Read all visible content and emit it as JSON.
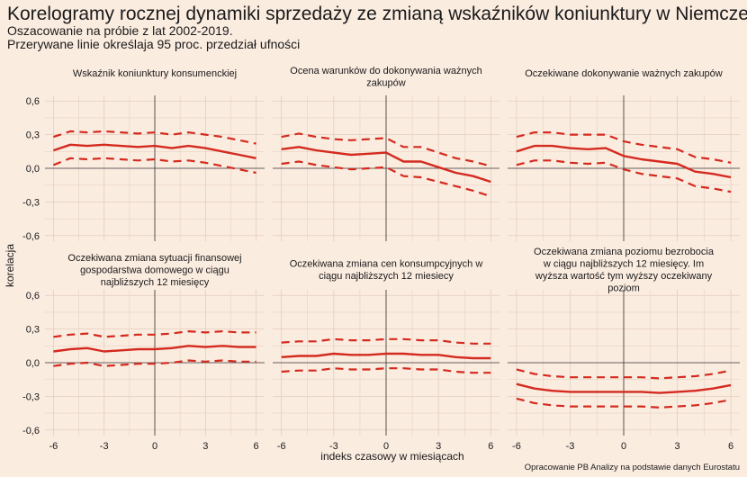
{
  "title": "Korelogramy rocznej dynamiki sprzedaży ze zmianą wskaźników koniunktury w Niemczech",
  "subtitle_line1": "Oszacowanie na próbie z lat 2002-2019.",
  "subtitle_line2": "Przerywane linie określaja 95 proc. przedział ufności",
  "caption": "Opracowanie PB Analizy na podstawie danych Eurostatu",
  "colors": {
    "background": "#fbece0",
    "line": "#d42a1f",
    "grid": "#e3cdbd",
    "zero_line": "#333333"
  },
  "chart_data": {
    "type": "line",
    "xlabel": "indeks czasowy w miesiącach",
    "ylabel": "korelacja",
    "x": [
      -6,
      -5,
      -4,
      -3,
      -2,
      -1,
      0,
      1,
      2,
      3,
      4,
      5,
      6
    ],
    "xlim": [
      -6.5,
      6.5
    ],
    "ylim": [
      -0.65,
      0.65
    ],
    "x_ticks": [
      -6,
      -3,
      0,
      3,
      6
    ],
    "x_tick_labels": [
      "-6",
      "-3",
      "0",
      "3",
      "6"
    ],
    "y_ticks": [
      -0.6,
      -0.3,
      0,
      0.3,
      0.6
    ],
    "y_tick_labels": [
      "-0,6",
      "-0,3",
      "0,0",
      "0,3",
      "0,6"
    ],
    "grid": true,
    "panels": [
      {
        "title": [
          "Wskaźnik koniunktury konsumenckiej"
        ],
        "estimate": [
          0.16,
          0.21,
          0.2,
          0.21,
          0.2,
          0.19,
          0.2,
          0.18,
          0.2,
          0.18,
          0.15,
          0.12,
          0.09
        ],
        "upper": [
          0.28,
          0.33,
          0.32,
          0.33,
          0.32,
          0.31,
          0.32,
          0.3,
          0.32,
          0.3,
          0.28,
          0.25,
          0.22
        ],
        "lower": [
          0.03,
          0.09,
          0.08,
          0.09,
          0.08,
          0.07,
          0.08,
          0.06,
          0.07,
          0.05,
          0.02,
          -0.01,
          -0.04
        ]
      },
      {
        "title": [
          "Ocena warunków do dokonywania ważnych",
          "zakupów"
        ],
        "estimate": [
          0.17,
          0.19,
          0.16,
          0.14,
          0.12,
          0.13,
          0.14,
          0.06,
          0.06,
          0.01,
          -0.04,
          -0.07,
          -0.12
        ],
        "upper": [
          0.28,
          0.31,
          0.28,
          0.26,
          0.25,
          0.26,
          0.27,
          0.19,
          0.19,
          0.14,
          0.09,
          0.06,
          0.02
        ],
        "lower": [
          0.04,
          0.06,
          0.03,
          0.01,
          -0.01,
          0.0,
          0.01,
          -0.07,
          -0.08,
          -0.12,
          -0.16,
          -0.2,
          -0.25
        ]
      },
      {
        "title": [
          "Oczekiwane dokonywanie ważnych zakupów"
        ],
        "estimate": [
          0.15,
          0.2,
          0.2,
          0.18,
          0.17,
          0.18,
          0.11,
          0.08,
          0.06,
          0.04,
          -0.03,
          -0.05,
          -0.08
        ],
        "upper": [
          0.28,
          0.32,
          0.32,
          0.3,
          0.3,
          0.3,
          0.24,
          0.21,
          0.19,
          0.17,
          0.1,
          0.08,
          0.05
        ],
        "lower": [
          0.03,
          0.07,
          0.07,
          0.05,
          0.04,
          0.05,
          -0.01,
          -0.05,
          -0.07,
          -0.09,
          -0.16,
          -0.18,
          -0.21
        ]
      },
      {
        "title": [
          "Oczekiwana zmiana sytuacji finansowej",
          "gospodarstwa domowego w ciągu",
          "najbliższych 12 miesięcy"
        ],
        "estimate": [
          0.1,
          0.12,
          0.13,
          0.1,
          0.11,
          0.12,
          0.12,
          0.13,
          0.15,
          0.14,
          0.15,
          0.14,
          0.14
        ],
        "upper": [
          0.23,
          0.25,
          0.26,
          0.23,
          0.24,
          0.25,
          0.25,
          0.26,
          0.28,
          0.27,
          0.28,
          0.27,
          0.27
        ],
        "lower": [
          -0.03,
          -0.01,
          0.0,
          -0.03,
          -0.02,
          -0.01,
          -0.01,
          0.0,
          0.02,
          0.01,
          0.02,
          0.01,
          0.01
        ]
      },
      {
        "title": [
          "Oczekiwana zmiana cen konsumpcyjnych w",
          "ciągu najbliższych 12 miesiecy"
        ],
        "estimate": [
          0.05,
          0.06,
          0.06,
          0.08,
          0.07,
          0.07,
          0.08,
          0.08,
          0.07,
          0.07,
          0.05,
          0.04,
          0.04
        ],
        "upper": [
          0.18,
          0.19,
          0.19,
          0.21,
          0.2,
          0.2,
          0.21,
          0.21,
          0.2,
          0.2,
          0.18,
          0.17,
          0.17
        ],
        "lower": [
          -0.08,
          -0.07,
          -0.07,
          -0.05,
          -0.06,
          -0.06,
          -0.05,
          -0.05,
          -0.06,
          -0.06,
          -0.08,
          -0.09,
          -0.09
        ]
      },
      {
        "title": [
          "Oczekiwana zmiana poziomu bezrobocia",
          "w ciągu najbliższych 12 miesięcy. Im",
          "wyższa wartość tym wyższy oczekiwany",
          "poziom"
        ],
        "estimate": [
          -0.19,
          -0.23,
          -0.25,
          -0.26,
          -0.26,
          -0.26,
          -0.26,
          -0.26,
          -0.27,
          -0.26,
          -0.25,
          -0.23,
          -0.2
        ],
        "upper": [
          -0.06,
          -0.1,
          -0.12,
          -0.13,
          -0.13,
          -0.13,
          -0.13,
          -0.13,
          -0.14,
          -0.13,
          -0.12,
          -0.1,
          -0.07
        ],
        "lower": [
          -0.32,
          -0.36,
          -0.38,
          -0.39,
          -0.39,
          -0.39,
          -0.39,
          -0.39,
          -0.4,
          -0.39,
          -0.38,
          -0.36,
          -0.33
        ]
      }
    ]
  }
}
